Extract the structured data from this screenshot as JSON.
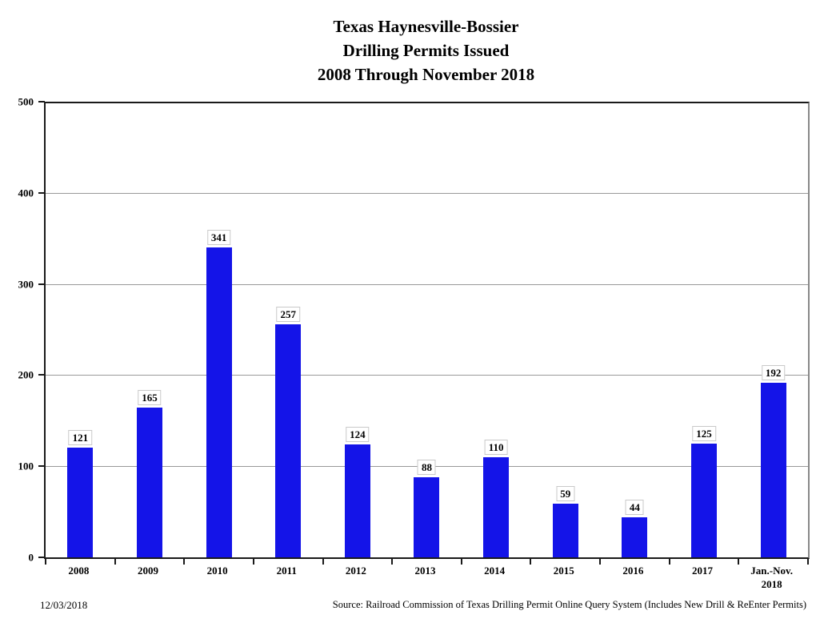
{
  "title": {
    "line1": "Texas Haynesville-Bossier",
    "line2": "Drilling Permits Issued",
    "line3": "2008 Through November 2018"
  },
  "chart_data": {
    "type": "bar",
    "title": "Texas Haynesville-Bossier Drilling Permits Issued 2008 Through November 2018",
    "categories": [
      "2008",
      "2009",
      "2010",
      "2011",
      "2012",
      "2013",
      "2014",
      "2015",
      "2016",
      "2017",
      "Jan.-Nov.\n2018"
    ],
    "values": [
      121,
      165,
      341,
      257,
      124,
      88,
      110,
      59,
      44,
      125,
      192
    ],
    "xlabel": "",
    "ylabel": "",
    "ylim": [
      0,
      500
    ],
    "yticks": [
      0,
      100,
      200,
      300,
      400,
      500
    ],
    "grid": true,
    "legend_position": "none",
    "bar_color": "#1414e8",
    "grid_color": "#999999",
    "value_labels_shown": true
  },
  "footer": {
    "date": "12/03/2018",
    "source": "Source: Railroad Commission of Texas Drilling Permit Online Query System (Includes New Drill & ReEnter Permits)"
  }
}
